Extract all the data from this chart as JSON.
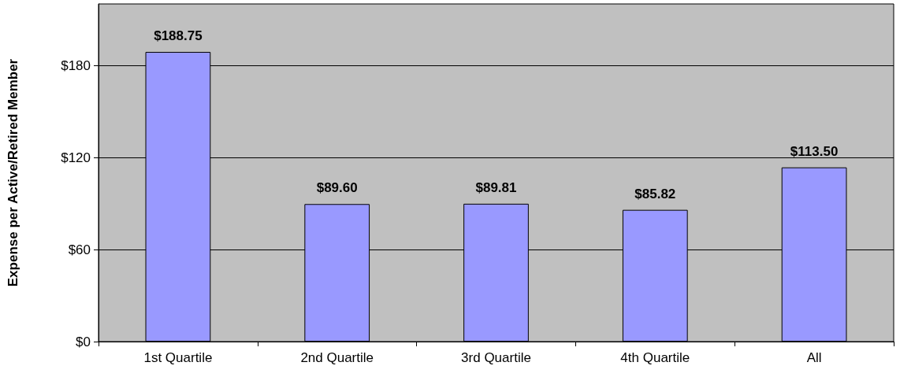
{
  "chart_data": {
    "type": "bar",
    "ylabel": "Expense per Active/Retired Member",
    "categories": [
      "1st Quartile",
      "2nd Quartile",
      "3rd Quartile",
      "4th Quartile",
      "All"
    ],
    "values": [
      188.75,
      89.6,
      89.81,
      85.82,
      113.5
    ],
    "value_labels": [
      "$188.75",
      "$89.60",
      "$89.81",
      "$85.82",
      "$113.50"
    ],
    "color": "#9999ff",
    "ylim": [
      0,
      220
    ],
    "yticks": [
      {
        "value": 0,
        "label": "$0"
      },
      {
        "value": 60,
        "label": "$60"
      },
      {
        "value": 120,
        "label": "$120"
      },
      {
        "value": 180,
        "label": "$180"
      }
    ],
    "grid": "y"
  }
}
